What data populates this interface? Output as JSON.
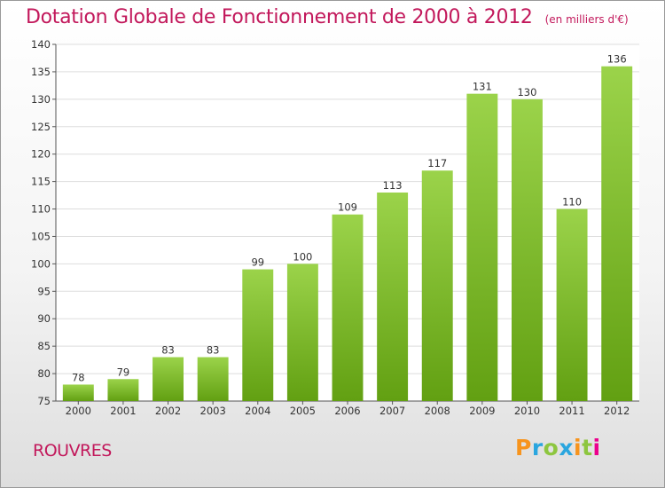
{
  "title": "Dotation Globale de Fonctionnement de 2000 à 2012",
  "unit_note": "(en milliers d'€)",
  "location": "ROUVRES",
  "logo": {
    "letters": [
      "P",
      "r",
      "o",
      "x",
      "i",
      "t",
      "i"
    ],
    "colors": [
      "#f7941d",
      "#2aa6df",
      "#8dc63f",
      "#2aa6df",
      "#f7941d",
      "#8dc63f",
      "#ec008c"
    ]
  },
  "colors": {
    "title": "#c2185b",
    "bar_top": "#9bd34a",
    "bar_bottom": "#62a012"
  },
  "chart_data": {
    "type": "bar",
    "title": "Dotation Globale de Fonctionnement de 2000 à 2012",
    "subtitle": "(en milliers d'€)",
    "categories": [
      "2000",
      "2001",
      "2002",
      "2003",
      "2004",
      "2005",
      "2006",
      "2007",
      "2008",
      "2009",
      "2010",
      "2011",
      "2012"
    ],
    "values": [
      78,
      79,
      83,
      83,
      99,
      100,
      109,
      113,
      117,
      131,
      130,
      110,
      136
    ],
    "ylim": [
      75,
      140
    ],
    "yticks": [
      75,
      80,
      85,
      90,
      95,
      100,
      105,
      110,
      115,
      120,
      125,
      130,
      135,
      140
    ],
    "xlabel": "",
    "ylabel": "",
    "grid": true
  }
}
